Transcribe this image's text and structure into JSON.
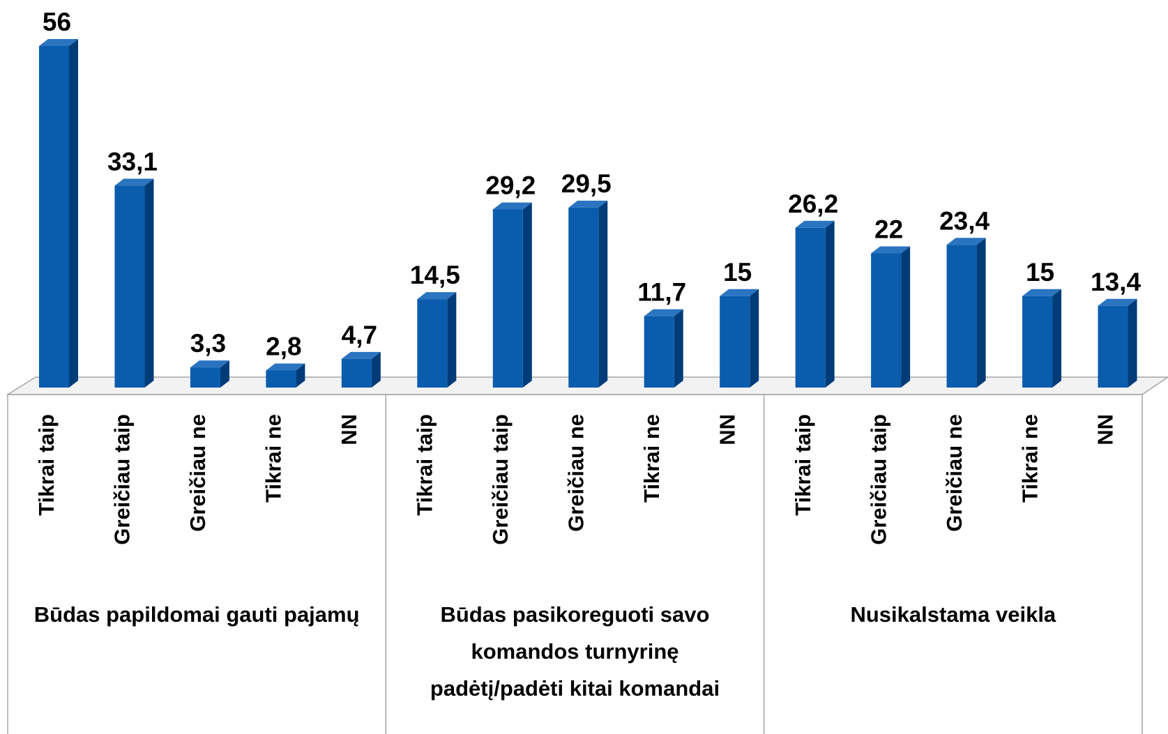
{
  "chart_data": {
    "type": "bar3d",
    "categories": [
      "Tikrai taip",
      "Greičiau taip",
      "Greičiau ne",
      "Tikrai ne",
      "NN",
      "Tikrai taip",
      "Greičiau taip",
      "Greičiau ne",
      "Tikrai ne",
      "NN",
      "Tikrai taip",
      "Greičiau taip",
      "Greičiau ne",
      "Tikrai ne",
      "NN"
    ],
    "group_labels": [
      "Būdas papildomai gauti pajamų",
      "Būdas pasikoreguoti savo komandos turnyrinę padėtį/padėti kitai komandai",
      "Nusikalstama veikla"
    ],
    "values": [
      56,
      33.1,
      3.3,
      2.8,
      4.7,
      14.5,
      29.2,
      29.5,
      11.7,
      15,
      26.2,
      22,
      23.4,
      15,
      13.4
    ],
    "value_labels": [
      "56",
      "33,1",
      "3,3",
      "2,8",
      "4,7",
      "14,5",
      "29,2",
      "29,5",
      "11,7",
      "15",
      "26,2",
      "22",
      "23,4",
      "15",
      "13,4"
    ],
    "color": "#0a5cad",
    "ylim": [
      0,
      60
    ]
  }
}
